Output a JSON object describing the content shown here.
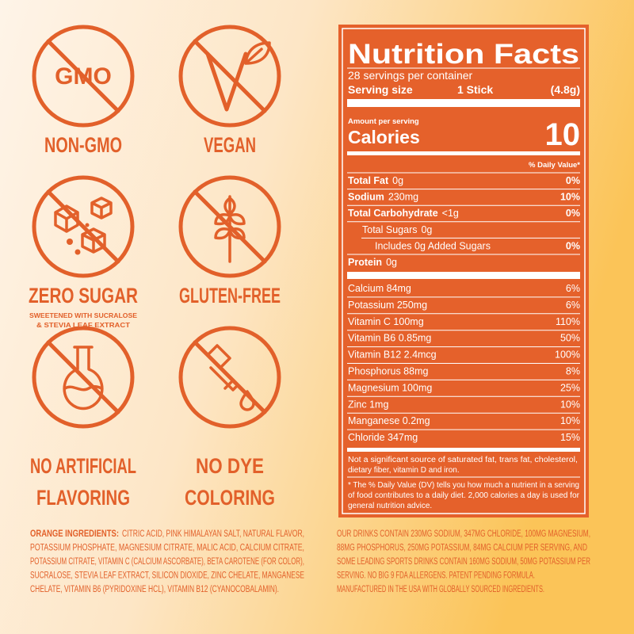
{
  "badges": [
    {
      "icon_text": "GMO",
      "label_lines": [
        "NON-GMO"
      ]
    },
    {
      "label_lines": [
        "VEGAN"
      ]
    },
    {
      "label_lines": [
        "ZERO SUGAR"
      ],
      "note_lines": [
        "SWEETENED WITH SUCRALOSE",
        "& STEVIA LEAF EXTRACT"
      ]
    },
    {
      "label_lines": [
        "GLUTEN-FREE"
      ]
    },
    {
      "label_lines": [
        "NO ARTIFICIAL",
        "FLAVORING"
      ]
    },
    {
      "label_lines": [
        "NO DYE",
        "COLORING"
      ]
    }
  ],
  "nutrition": {
    "title": "Nutrition Facts",
    "servings": "28 servings per container",
    "serving_size": {
      "label": "Serving size",
      "amount": "1 Stick",
      "weight": "(4.8g)"
    },
    "amount_per_serving": "Amount per serving",
    "calories": {
      "label": "Calories",
      "value": "10"
    },
    "dv_header": "% Daily Value*",
    "nutrients": [
      {
        "name": "Total Fat",
        "amount": "0g",
        "dv": "0%"
      },
      {
        "name": "Sodium",
        "amount": "230mg",
        "dv": "10%"
      },
      {
        "name": "Total Carbohydrate",
        "amount": "<1g",
        "dv": "0%"
      },
      {
        "name": "Total Sugars",
        "amount": "0g"
      },
      {
        "name": "Includes 0g Added Sugars",
        "dv": "0%"
      },
      {
        "name": "Protein",
        "amount": "0g"
      }
    ],
    "vitamins": [
      {
        "name": "Calcium 84mg",
        "dv": "6%"
      },
      {
        "name": "Potassium 250mg",
        "dv": "6%"
      },
      {
        "name": "Vitamin C 100mg",
        "dv": "110%"
      },
      {
        "name": "Vitamin B6 0.85mg",
        "dv": "50%"
      },
      {
        "name": "Vitamin B12 2.4mcg",
        "dv": "100%"
      },
      {
        "name": "Phosphorus 88mg",
        "dv": "8%"
      },
      {
        "name": "Magnesium 100mg",
        "dv": "25%"
      },
      {
        "name": "Zinc 1mg",
        "dv": "10%"
      },
      {
        "name": "Manganese 0.2mg",
        "dv": "10%"
      },
      {
        "name": "Chloride 347mg",
        "dv": "15%"
      }
    ],
    "footnote_lines": [
      "Not a significant source of saturated fat, trans fat, cholesterol,",
      "dietary fiber, vitamin D and iron."
    ],
    "dv_note_lines": [
      "* The % Daily Value (DV) tells you how much a nutrient in a serving",
      "of food contributes to a daily diet. 2,000 calories a day is used for",
      "general nutrition advice."
    ]
  },
  "ingredients": {
    "label": "ORANGE INGREDIENTS:",
    "lines": [
      "CITRIC ACID, PINK HIMALAYAN SALT, NATURAL FLAVOR,",
      "POTASSIUM PHOSPHATE, MAGNESIUM CITRATE, MALIC ACID, CALCIUM CITRATE,",
      "POTASSIUM CITRATE, VITAMIN C (CALCIUM ASCORBATE), BETA CAROTENE (FOR COLOR),",
      "SUCRALOSE, STEVIA LEAF EXTRACT, SILICON DIOXIDE, ZINC CHELATE, MANGANESE",
      "CHELATE, VITAMIN B6 (PYRIDOXINE HCL), VITAMIN B12 (CYANOCOBALAMIN)."
    ]
  },
  "claims": {
    "lines": [
      "OUR DRINKS CONTAIN 230MG SODIUM, 347MG CHLORIDE,  100MG MAGNESIUM,",
      "88MG PHOSPHORUS, 250MG POTASSIUM, 84MG CALCIUM PER SERVING, AND",
      "SOME LEADING SPORTS DRINKS CONTAIN 160MG SODIUM, 50MG POTASSIUM PER",
      "SERVING. NO BIG 9 FDA ALLERGENS. PATENT PENDING FORMULA.",
      "MANUFACTURED IN THE USA WITH GLOBALLY SOURCED INGREDIENTS."
    ]
  }
}
